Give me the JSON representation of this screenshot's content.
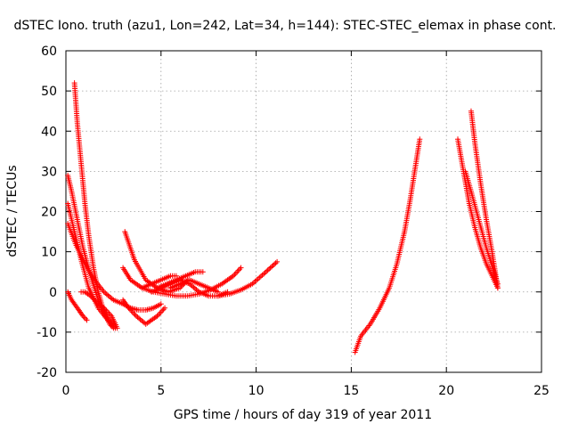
{
  "chart_data": {
    "type": "scatter",
    "title": "dSTEC Iono. truth (azu1, Lon=242, Lat=34, h=144): STEC-STEC_elemax in phase cont.",
    "xlabel": "GPS time / hours of day 319 of year 2011",
    "ylabel": "dSTEC  / TECUs",
    "xlim": [
      0,
      25
    ],
    "ylim": [
      -20,
      60
    ],
    "xticks": [
      0,
      5,
      10,
      15,
      20,
      25
    ],
    "yticks": [
      -20,
      -10,
      0,
      10,
      20,
      30,
      40,
      50,
      60
    ],
    "grid": true,
    "marker": "+",
    "color": "#ff0000",
    "series": [
      {
        "x": [
          0.45,
          0.6,
          0.8,
          1.0,
          1.2,
          1.45,
          1.7,
          2.0,
          2.3,
          2.5
        ],
        "y": [
          52,
          42,
          32,
          22,
          14,
          6,
          0,
          -5,
          -8,
          -9
        ]
      },
      {
        "x": [
          0.1,
          0.3,
          0.6,
          0.9,
          1.3,
          1.7,
          2.1,
          2.5
        ],
        "y": [
          29,
          25,
          18,
          11,
          4,
          -2,
          -6,
          -8
        ]
      },
      {
        "x": [
          0.1,
          0.4,
          0.8,
          1.2,
          1.7,
          2.2,
          2.6
        ],
        "y": [
          22,
          16,
          8,
          1,
          -4,
          -7,
          -9
        ]
      },
      {
        "x": [
          0.1,
          0.3,
          0.6,
          0.9,
          1.1
        ],
        "y": [
          0,
          -2,
          -4,
          -6,
          -7
        ]
      },
      {
        "x": [
          0.8,
          1.0,
          1.3,
          1.7,
          2.0,
          2.4,
          2.7
        ],
        "y": [
          0,
          0,
          -1,
          -3,
          -4,
          -6,
          -9
        ]
      },
      {
        "x": [
          0.1,
          0.5,
          1.0,
          1.5,
          2.0,
          2.5,
          3.0,
          3.4,
          3.8,
          4.2,
          4.6,
          5.0
        ],
        "y": [
          17,
          12,
          7,
          3,
          0,
          -2,
          -3,
          -4,
          -4.5,
          -4.5,
          -4,
          -3
        ]
      },
      {
        "x": [
          3.0,
          3.3,
          3.7,
          4.2,
          4.8,
          5.2
        ],
        "y": [
          -2,
          -4,
          -6,
          -8,
          -6,
          -4
        ]
      },
      {
        "x": [
          3.0,
          3.4,
          4.0,
          4.6,
          5.2,
          5.8,
          6.4,
          7.0,
          7.6,
          8.2,
          8.8,
          9.2
        ],
        "y": [
          6,
          3,
          1,
          0,
          -0.5,
          -1,
          -1,
          -0.5,
          0.5,
          2,
          4,
          6
        ]
      },
      {
        "x": [
          3.1,
          3.6,
          4.2,
          4.8,
          5.4,
          6.0,
          6.4
        ],
        "y": [
          15,
          8,
          3,
          1,
          0,
          1,
          3
        ]
      },
      {
        "x": [
          4.5,
          5.0,
          5.5,
          6.0,
          6.5,
          7.0,
          7.5,
          8.0,
          8.5
        ],
        "y": [
          0,
          1,
          2,
          3,
          2,
          0,
          -1,
          -1,
          0
        ]
      },
      {
        "x": [
          5.5,
          6.0,
          6.5,
          7.0,
          7.5,
          8.0
        ],
        "y": [
          1,
          2,
          3,
          2,
          1,
          0
        ]
      },
      {
        "x": [
          4.8,
          5.3,
          5.8,
          6.3,
          6.8,
          7.2
        ],
        "y": [
          1,
          2,
          3,
          4,
          5,
          5
        ]
      },
      {
        "x": [
          8.0,
          8.6,
          9.2,
          9.8,
          10.4,
          11.1
        ],
        "y": [
          -1,
          -0.5,
          0.5,
          2,
          4.5,
          7.5
        ]
      },
      {
        "x": [
          4.0,
          4.5,
          5.0,
          5.5,
          5.8
        ],
        "y": [
          1,
          2,
          3,
          4,
          4
        ]
      },
      {
        "x": [
          15.2,
          15.5,
          16.0,
          16.5,
          17.0,
          17.4,
          17.8,
          18.1,
          18.4,
          18.6
        ],
        "y": [
          -15,
          -11,
          -8,
          -4,
          1,
          7,
          15,
          23,
          32,
          38
        ]
      },
      {
        "x": [
          20.6,
          20.9,
          21.2,
          21.5,
          21.8,
          22.1,
          22.4,
          22.7
        ],
        "y": [
          38,
          30,
          22,
          16,
          11,
          7,
          4,
          1
        ]
      },
      {
        "x": [
          21.3,
          21.5,
          21.8,
          22.1,
          22.4,
          22.7
        ],
        "y": [
          45,
          37,
          27,
          18,
          10,
          1
        ]
      },
      {
        "x": [
          21.0,
          21.3,
          21.7,
          22.1,
          22.5,
          22.7
        ],
        "y": [
          30,
          25,
          18,
          11,
          5,
          2
        ]
      }
    ]
  }
}
